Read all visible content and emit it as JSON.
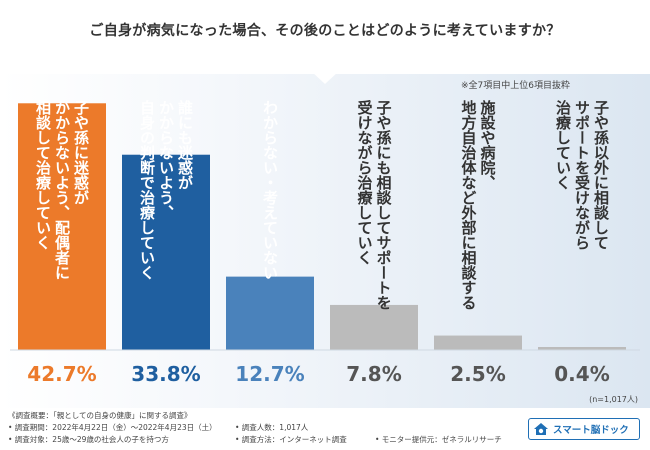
{
  "title": "ご自身が病気になった場合、その後のことはどのように考えていますか？",
  "note": "※全7項目中上位6項目抜粋",
  "n_label": "(n=1,017人)",
  "colors": {
    "orange": "#ec7a2a",
    "dark_blue": "#1f5fa0",
    "mid_blue": "#4a82bb",
    "gray": "#bbbbbb"
  },
  "chart_data": {
    "type": "bar",
    "categories": [
      "子や孫に迷惑がかからないよう、配偶者に相談して治療していく",
      "誰にも迷惑がかからないよう、自身の判断で治療していく",
      "わからない・考えていない",
      "子や孫にも相談してサポートを受けながら治療していく",
      "地方自治体など外部に相談する施設や病院、",
      "子や孫以外に相談してサポートを受けながら治療していく"
    ],
    "label_lines": [
      [
        "子や孫に迷惑が",
        "かからないよう、配偶者に",
        "相談して治療していく"
      ],
      [
        "誰にも迷惑が",
        "かからないよう、",
        "自身の判断で治療していく"
      ],
      [
        "わからない・考えていない"
      ],
      [
        "子や孫にも相談してサポートを",
        "受けながら治療していく"
      ],
      [
        "施設や病院、",
        "地方自治体など外部に相談する"
      ],
      [
        "子や孫以外に相談して",
        "サポートを受けながら",
        "治療していく"
      ]
    ],
    "values": [
      42.7,
      33.8,
      12.7,
      7.8,
      2.5,
      0.4
    ],
    "value_labels": [
      "42.7%",
      "33.8%",
      "12.7%",
      "7.8%",
      "2.5%",
      "0.4%"
    ],
    "bar_colors": [
      "#ec7a2a",
      "#1f5fa0",
      "#4a82bb",
      "#bbbbbb",
      "#bbbbbb",
      "#bbbbbb"
    ],
    "label_colors": [
      "#ffffff",
      "#ffffff",
      "#ffffff",
      "#333333",
      "#333333",
      "#333333"
    ],
    "value_colors": [
      "#ec7a2a",
      "#1f5fa0",
      "#4a82bb",
      "#555555",
      "#555555",
      "#555555"
    ],
    "ylim": [
      0,
      45
    ]
  },
  "footer": {
    "lines": [
      "《調査概要：「親としての自身の健康」に関する調査》",
      "• 調査期間：2022年4月22日（金）～2022年4月23日（土）",
      "• 調査対象：25歳～29歳の社会人の子を持つ方",
      "• 調査人数：1,017人",
      "• 調査方法：インターネット調査",
      "• モニター提供元：ゼネラルリサーチ"
    ]
  },
  "logo_text": "スマート脳ドック"
}
